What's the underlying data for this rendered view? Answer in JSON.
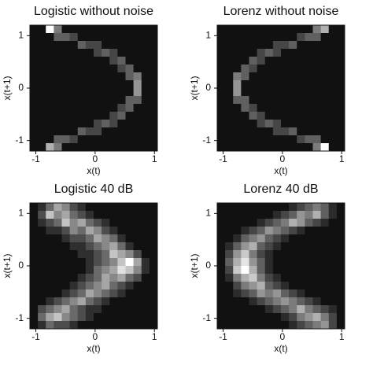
{
  "chart_data": [
    {
      "type": "heatmap",
      "title": "Logistic without noise",
      "xlabel": "x(t)",
      "ylabel": "x(t+1)",
      "xlim": [
        -1.1,
        1.05
      ],
      "ylim": [
        -1.2,
        1.2
      ],
      "xticks": [
        -1,
        0,
        1
      ],
      "yticks": [
        -1,
        0,
        1
      ],
      "z": [
        [
          0,
          0,
          9,
          4,
          0,
          0,
          0,
          0,
          0,
          0,
          0,
          0,
          0,
          0,
          0,
          0
        ],
        [
          0,
          0,
          0,
          3,
          3,
          2,
          0,
          0,
          0,
          0,
          0,
          0,
          0,
          0,
          0,
          0
        ],
        [
          0,
          0,
          0,
          0,
          0,
          0,
          3,
          2,
          2,
          0,
          0,
          0,
          0,
          0,
          0,
          0
        ],
        [
          0,
          0,
          0,
          0,
          0,
          0,
          0,
          0,
          2,
          3,
          2,
          0,
          0,
          0,
          0,
          0
        ],
        [
          0,
          0,
          0,
          0,
          0,
          0,
          0,
          0,
          0,
          0,
          2,
          3,
          0,
          0,
          0,
          0
        ],
        [
          0,
          0,
          0,
          0,
          0,
          0,
          0,
          0,
          0,
          0,
          0,
          2,
          3,
          0,
          0,
          0
        ],
        [
          0,
          0,
          0,
          0,
          0,
          0,
          0,
          0,
          0,
          0,
          0,
          0,
          3,
          4,
          0,
          0
        ],
        [
          0,
          0,
          0,
          0,
          0,
          0,
          0,
          0,
          0,
          0,
          0,
          0,
          0,
          5,
          0,
          0
        ],
        [
          0,
          0,
          0,
          0,
          0,
          0,
          0,
          0,
          0,
          0,
          0,
          0,
          0,
          5,
          0,
          0
        ],
        [
          0,
          0,
          0,
          0,
          0,
          0,
          0,
          0,
          0,
          0,
          0,
          0,
          3,
          3,
          0,
          0
        ],
        [
          0,
          0,
          0,
          0,
          0,
          0,
          0,
          0,
          0,
          0,
          0,
          2,
          3,
          0,
          0,
          0
        ],
        [
          0,
          0,
          0,
          0,
          0,
          0,
          0,
          0,
          0,
          0,
          2,
          3,
          0,
          0,
          0,
          0
        ],
        [
          0,
          0,
          0,
          0,
          0,
          0,
          0,
          0,
          2,
          3,
          2,
          0,
          0,
          0,
          0,
          0
        ],
        [
          0,
          0,
          0,
          0,
          0,
          0,
          3,
          2,
          2,
          0,
          0,
          0,
          0,
          0,
          0,
          0
        ],
        [
          0,
          0,
          0,
          3,
          3,
          2,
          0,
          0,
          0,
          0,
          0,
          0,
          0,
          0,
          0,
          0
        ],
        [
          0,
          0,
          6,
          4,
          0,
          0,
          0,
          0,
          0,
          0,
          0,
          0,
          0,
          0,
          0,
          0
        ]
      ]
    },
    {
      "type": "heatmap",
      "title": "Lorenz without noise",
      "xlabel": "x(t)",
      "ylabel": "x(t+1)",
      "xlim": [
        -1.1,
        1.05
      ],
      "ylim": [
        -1.2,
        1.2
      ],
      "xticks": [
        -1,
        0,
        1
      ],
      "yticks": [
        -1,
        0,
        1
      ],
      "z": [
        [
          0,
          0,
          0,
          0,
          0,
          0,
          0,
          0,
          0,
          0,
          0,
          0,
          4,
          6,
          0,
          0
        ],
        [
          0,
          0,
          0,
          0,
          0,
          0,
          0,
          0,
          0,
          0,
          2,
          3,
          3,
          0,
          0,
          0
        ],
        [
          0,
          0,
          0,
          0,
          0,
          0,
          0,
          2,
          2,
          3,
          0,
          0,
          0,
          0,
          0,
          0
        ],
        [
          0,
          0,
          0,
          0,
          0,
          2,
          3,
          2,
          0,
          0,
          0,
          0,
          0,
          0,
          0,
          0
        ],
        [
          0,
          0,
          0,
          0,
          3,
          2,
          0,
          0,
          0,
          0,
          0,
          0,
          0,
          0,
          0,
          0
        ],
        [
          0,
          0,
          0,
          3,
          2,
          0,
          0,
          0,
          0,
          0,
          0,
          0,
          0,
          0,
          0,
          0
        ],
        [
          0,
          0,
          4,
          3,
          0,
          0,
          0,
          0,
          0,
          0,
          0,
          0,
          0,
          0,
          0,
          0
        ],
        [
          0,
          0,
          5,
          0,
          0,
          0,
          0,
          0,
          0,
          0,
          0,
          0,
          0,
          0,
          0,
          0
        ],
        [
          0,
          0,
          5,
          0,
          0,
          0,
          0,
          0,
          0,
          0,
          0,
          0,
          0,
          0,
          0,
          0
        ],
        [
          0,
          0,
          3,
          3,
          0,
          0,
          0,
          0,
          0,
          0,
          0,
          0,
          0,
          0,
          0,
          0
        ],
        [
          0,
          0,
          0,
          3,
          2,
          0,
          0,
          0,
          0,
          0,
          0,
          0,
          0,
          0,
          0,
          0
        ],
        [
          0,
          0,
          0,
          0,
          3,
          2,
          0,
          0,
          0,
          0,
          0,
          0,
          0,
          0,
          0,
          0
        ],
        [
          0,
          0,
          0,
          0,
          0,
          2,
          3,
          2,
          0,
          0,
          0,
          0,
          0,
          0,
          0,
          0
        ],
        [
          0,
          0,
          0,
          0,
          0,
          0,
          0,
          2,
          2,
          3,
          0,
          0,
          0,
          0,
          0,
          0
        ],
        [
          0,
          0,
          0,
          0,
          0,
          0,
          0,
          0,
          0,
          0,
          2,
          3,
          3,
          0,
          0,
          0
        ],
        [
          0,
          0,
          0,
          0,
          0,
          0,
          0,
          0,
          0,
          0,
          0,
          0,
          4,
          9,
          0,
          0
        ]
      ]
    },
    {
      "type": "heatmap",
      "title": "Logistic 40 dB",
      "xlabel": "x(t)",
      "ylabel": "x(t+1)",
      "xlim": [
        -1.1,
        1.05
      ],
      "ylim": [
        -1.2,
        1.2
      ],
      "xticks": [
        -1,
        0,
        1
      ],
      "yticks": [
        -1,
        0,
        1
      ],
      "z": [
        [
          0,
          1,
          3,
          5,
          4,
          2,
          1,
          0,
          0,
          0,
          0,
          0,
          0,
          0,
          0,
          0
        ],
        [
          0,
          2,
          6,
          4,
          5,
          3,
          2,
          1,
          0,
          0,
          0,
          0,
          0,
          0,
          0,
          0
        ],
        [
          0,
          1,
          2,
          3,
          6,
          4,
          5,
          3,
          2,
          1,
          0,
          0,
          0,
          0,
          0,
          0
        ],
        [
          0,
          0,
          1,
          1,
          2,
          4,
          3,
          5,
          4,
          2,
          1,
          0,
          0,
          0,
          0,
          0
        ],
        [
          0,
          0,
          0,
          0,
          1,
          2,
          2,
          3,
          5,
          4,
          3,
          1,
          0,
          0,
          0,
          0
        ],
        [
          0,
          0,
          0,
          0,
          0,
          1,
          1,
          2,
          3,
          4,
          5,
          3,
          1,
          0,
          0,
          0
        ],
        [
          0,
          0,
          0,
          0,
          0,
          0,
          1,
          1,
          2,
          3,
          6,
          5,
          4,
          2,
          0,
          0
        ],
        [
          0,
          0,
          0,
          0,
          0,
          0,
          0,
          1,
          2,
          3,
          4,
          6,
          8,
          5,
          1,
          0
        ],
        [
          0,
          0,
          0,
          0,
          0,
          0,
          0,
          1,
          3,
          4,
          5,
          7,
          6,
          4,
          1,
          0
        ],
        [
          0,
          0,
          0,
          0,
          0,
          0,
          1,
          2,
          3,
          5,
          4,
          5,
          3,
          2,
          0,
          0
        ],
        [
          0,
          0,
          0,
          0,
          0,
          1,
          2,
          3,
          4,
          5,
          3,
          2,
          1,
          0,
          0,
          0
        ],
        [
          0,
          0,
          0,
          0,
          1,
          2,
          3,
          5,
          4,
          3,
          2,
          1,
          0,
          0,
          0,
          0
        ],
        [
          0,
          0,
          1,
          2,
          3,
          4,
          5,
          3,
          2,
          1,
          0,
          0,
          0,
          0,
          0,
          0
        ],
        [
          0,
          2,
          3,
          4,
          5,
          3,
          2,
          1,
          1,
          0,
          0,
          0,
          0,
          0,
          0,
          0
        ],
        [
          0,
          3,
          5,
          6,
          4,
          3,
          2,
          1,
          0,
          0,
          0,
          0,
          0,
          0,
          0,
          0
        ],
        [
          0,
          1,
          3,
          2,
          2,
          1,
          0,
          0,
          0,
          0,
          0,
          0,
          0,
          0,
          0,
          0
        ]
      ]
    },
    {
      "type": "heatmap",
      "title": "Lorenz 40 dB",
      "xlabel": "x(t)",
      "ylabel": "x(t+1)",
      "xlim": [
        -1.1,
        1.05
      ],
      "ylim": [
        -1.2,
        1.2
      ],
      "xticks": [
        -1,
        0,
        1
      ],
      "yticks": [
        -1,
        0,
        1
      ],
      "z": [
        [
          0,
          0,
          0,
          0,
          0,
          0,
          0,
          0,
          0,
          1,
          2,
          3,
          4,
          3,
          1,
          0
        ],
        [
          0,
          0,
          0,
          0,
          0,
          0,
          0,
          1,
          2,
          3,
          5,
          4,
          6,
          3,
          1,
          0
        ],
        [
          0,
          0,
          0,
          0,
          0,
          1,
          2,
          3,
          4,
          6,
          5,
          3,
          2,
          1,
          0,
          0
        ],
        [
          0,
          0,
          0,
          1,
          2,
          3,
          5,
          4,
          3,
          2,
          1,
          0,
          0,
          0,
          0,
          0
        ],
        [
          0,
          0,
          1,
          3,
          4,
          5,
          3,
          2,
          1,
          0,
          0,
          0,
          0,
          0,
          0,
          0
        ],
        [
          0,
          1,
          3,
          5,
          6,
          3,
          2,
          1,
          0,
          0,
          0,
          0,
          0,
          0,
          0,
          0
        ],
        [
          0,
          2,
          5,
          7,
          4,
          2,
          1,
          0,
          0,
          0,
          0,
          0,
          0,
          0,
          0,
          0
        ],
        [
          0,
          3,
          6,
          8,
          5,
          3,
          1,
          0,
          0,
          0,
          0,
          0,
          0,
          0,
          0,
          0
        ],
        [
          0,
          2,
          7,
          9,
          6,
          3,
          1,
          0,
          0,
          0,
          0,
          0,
          0,
          0,
          0,
          0
        ],
        [
          0,
          1,
          4,
          6,
          7,
          4,
          2,
          1,
          0,
          0,
          0,
          0,
          0,
          0,
          0,
          0
        ],
        [
          0,
          0,
          2,
          4,
          5,
          6,
          3,
          2,
          1,
          0,
          0,
          0,
          0,
          0,
          0,
          0
        ],
        [
          0,
          0,
          1,
          2,
          3,
          5,
          4,
          5,
          3,
          2,
          1,
          0,
          0,
          0,
          0,
          0
        ],
        [
          0,
          0,
          0,
          0,
          1,
          2,
          3,
          4,
          5,
          4,
          3,
          2,
          1,
          0,
          0,
          0
        ],
        [
          0,
          0,
          0,
          0,
          0,
          0,
          1,
          2,
          3,
          4,
          6,
          4,
          3,
          2,
          1,
          0
        ],
        [
          0,
          0,
          0,
          0,
          0,
          0,
          0,
          0,
          1,
          2,
          4,
          5,
          6,
          4,
          2,
          0
        ],
        [
          0,
          0,
          0,
          0,
          0,
          0,
          0,
          0,
          0,
          1,
          2,
          3,
          4,
          5,
          2,
          0
        ]
      ]
    }
  ]
}
